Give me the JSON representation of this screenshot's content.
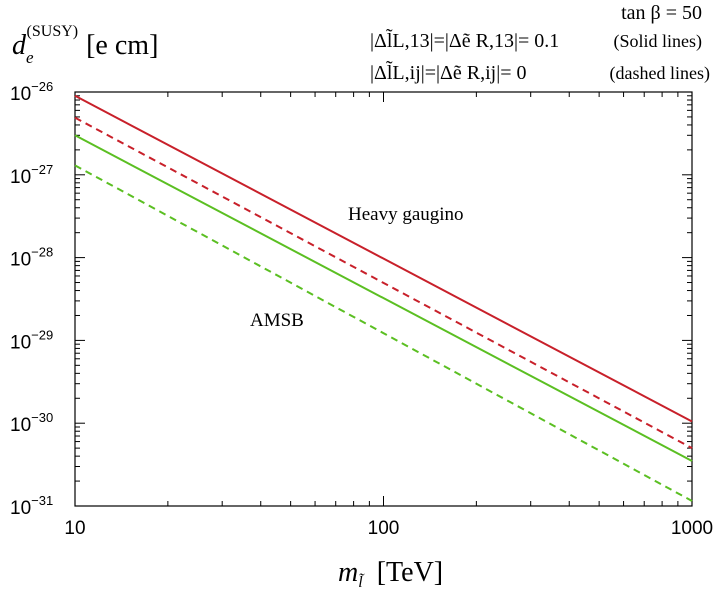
{
  "chart_data": {
    "type": "line",
    "x_scale": "log",
    "y_scale": "log",
    "xlim": [
      10,
      1000
    ],
    "ylim": [
      1e-31,
      1e-26
    ],
    "x_ticks": [
      {
        "value": 10,
        "label": "10"
      },
      {
        "value": 100,
        "label": "100"
      },
      {
        "value": 1000,
        "label": "1000"
      }
    ],
    "y_ticks": [
      {
        "value": 1e-26,
        "base": "10",
        "exp": "−26"
      },
      {
        "value": 1e-27,
        "base": "10",
        "exp": "−27"
      },
      {
        "value": 1e-28,
        "base": "10",
        "exp": "−28"
      },
      {
        "value": 1e-29,
        "base": "10",
        "exp": "−29"
      },
      {
        "value": 1e-30,
        "base": "10",
        "exp": "−30"
      },
      {
        "value": 1e-31,
        "base": "10",
        "exp": "−31"
      }
    ],
    "xlabel": {
      "symbol": "m",
      "sub": "l̃",
      "unit": "[TeV]"
    },
    "ylabel": {
      "symbol": "d",
      "sub": "e",
      "sup": "(SUSY)",
      "unit": "[e cm]"
    },
    "annotations": {
      "tan_beta": "tan β = 50",
      "solid_condition": "|Δl̃L,13|=|Δẽ R,13|= 0.1",
      "solid_note": "(Solid lines)",
      "dashed_condition": "|Δl̃L,ij|=|Δẽ R,ij|= 0",
      "dashed_note": "(dashed lines)",
      "heavy_gaugino": "Heavy gaugino",
      "amsb": "AMSB"
    },
    "series": [
      {
        "name": "Heavy gaugino (solid)",
        "color": "#c8202a",
        "dash": false,
        "x": [
          10,
          1000
        ],
        "y": [
          9e-27,
          1.05e-30
        ]
      },
      {
        "name": "Heavy gaugino (dashed)",
        "color": "#c8202a",
        "dash": true,
        "x": [
          10,
          1000
        ],
        "y": [
          4.9e-27,
          5e-31
        ]
      },
      {
        "name": "AMSB (solid)",
        "color": "#5bbf22",
        "dash": false,
        "x": [
          10,
          1000
        ],
        "y": [
          3e-27,
          3.5e-31
        ]
      },
      {
        "name": "AMSB (dashed)",
        "color": "#5bbf22",
        "dash": true,
        "x": [
          10,
          1000
        ],
        "y": [
          1.3e-27,
          1.15e-31
        ]
      }
    ]
  }
}
